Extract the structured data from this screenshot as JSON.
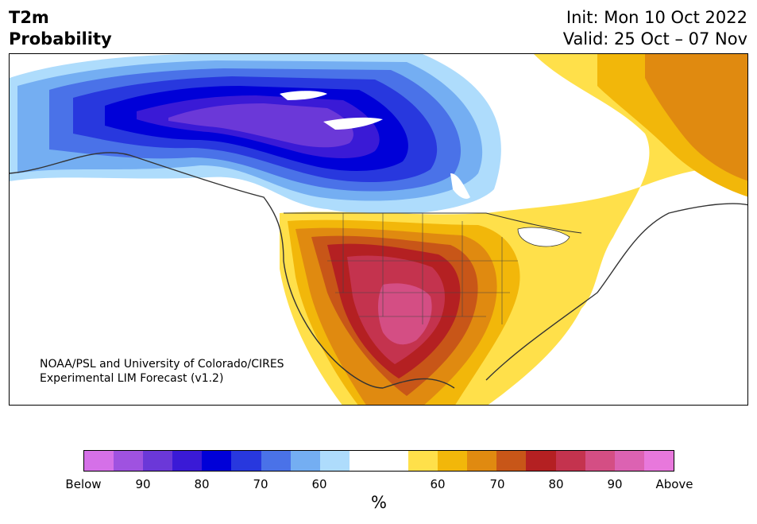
{
  "header": {
    "title_line1": "T2m",
    "title_line2": "Probability",
    "init": "Init: Mon 10 Oct 2022",
    "valid": "Valid: 25 Oct – 07 Nov"
  },
  "map": {
    "region": "North America",
    "credit_line1": "NOAA/PSL and University of Colorado/CIRES",
    "credit_line2": "Experimental LIM Forecast (v1.2)"
  },
  "colorbar": {
    "unit": "%",
    "segments": [
      {
        "color": "#d570e8"
      },
      {
        "color": "#9f52e0"
      },
      {
        "color": "#6b38d8"
      },
      {
        "color": "#3a1ad6"
      },
      {
        "color": "#0000d8"
      },
      {
        "color": "#2838de"
      },
      {
        "color": "#4a72e8"
      },
      {
        "color": "#74aef2"
      },
      {
        "color": "#aedcfc"
      },
      {
        "color": "#ffffff"
      },
      {
        "color": "#ffe04a"
      },
      {
        "color": "#f2b70a"
      },
      {
        "color": "#e08a10"
      },
      {
        "color": "#c85618"
      },
      {
        "color": "#b42022"
      },
      {
        "color": "#c4334e"
      },
      {
        "color": "#d44e84"
      },
      {
        "color": "#dc62b2"
      },
      {
        "color": "#e878dc"
      }
    ],
    "ticks": [
      "Below",
      "90",
      "80",
      "70",
      "60",
      "60",
      "70",
      "80",
      "90",
      "Above"
    ]
  }
}
